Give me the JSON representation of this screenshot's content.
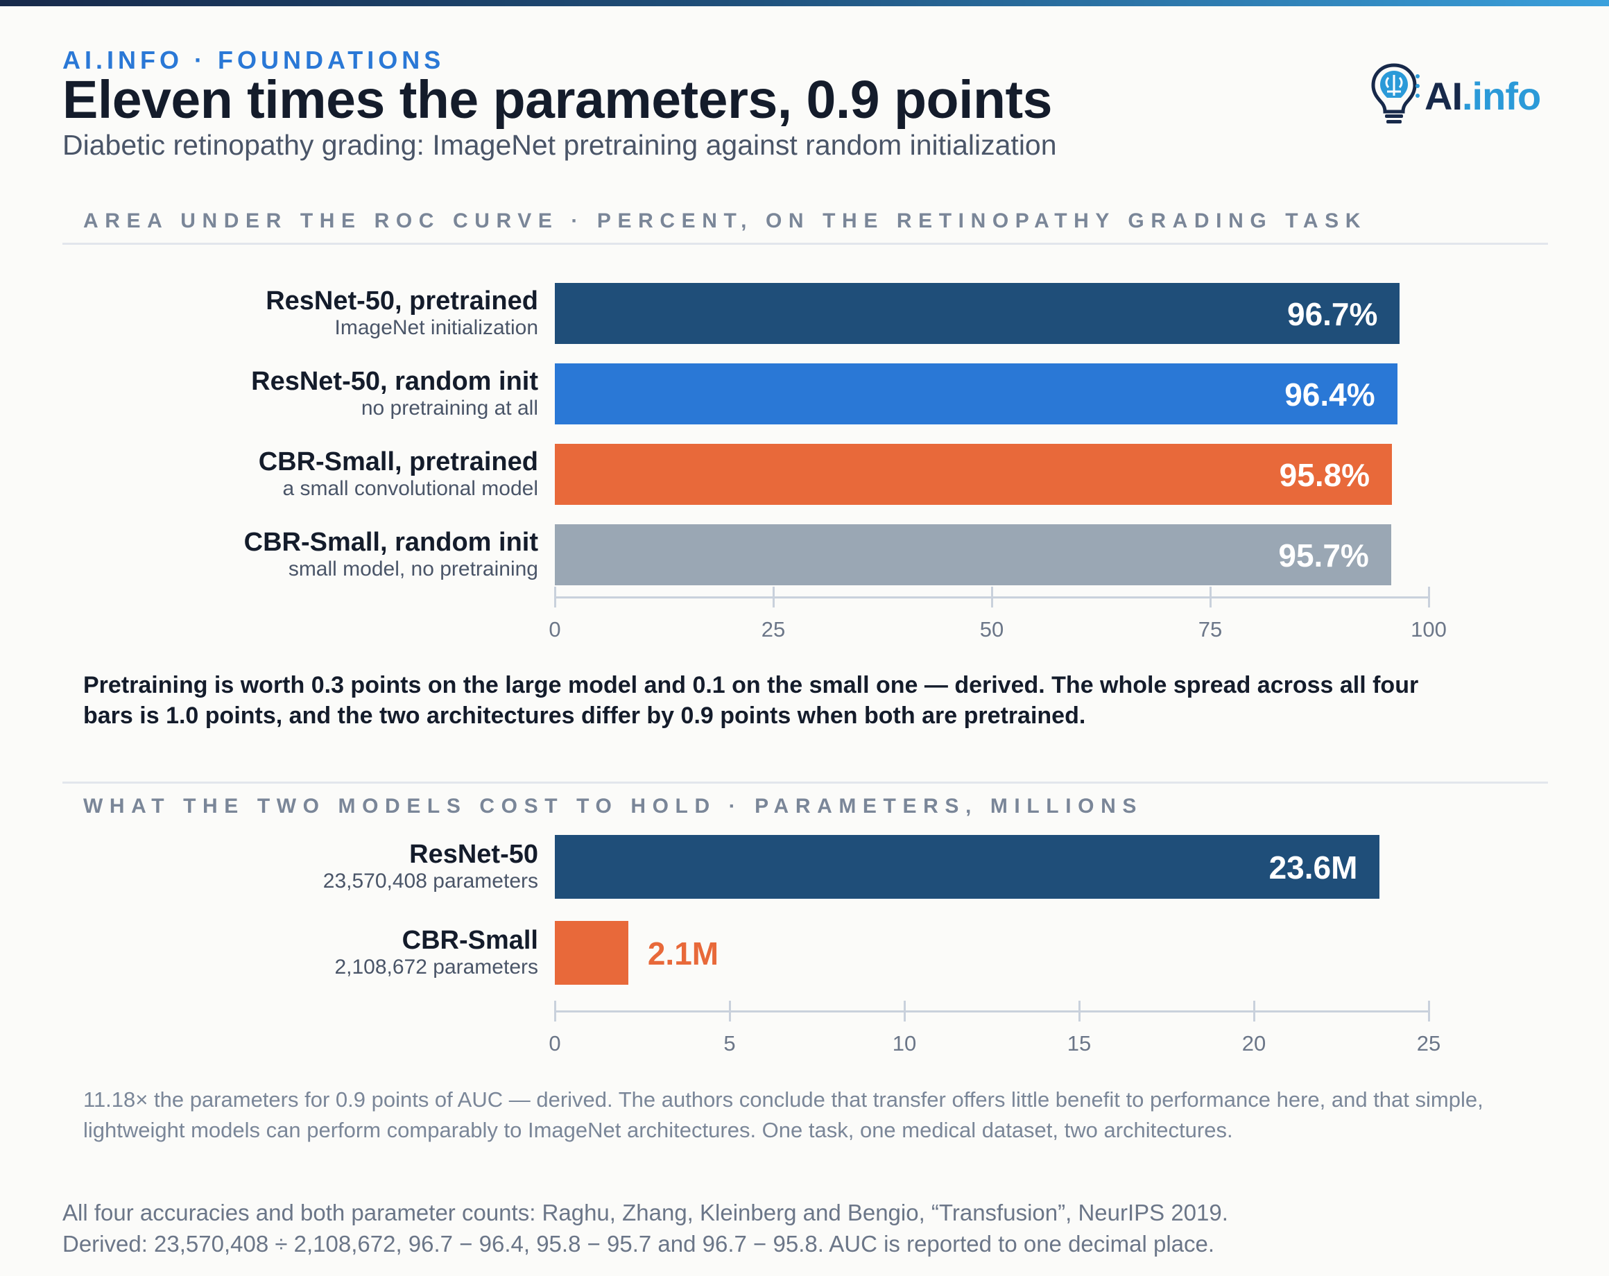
{
  "header": {
    "kicker": "AI.INFO · FOUNDATIONS",
    "title": "Eleven times the parameters, 0.9 points",
    "subtitle": "Diabetic retinopathy grading: ImageNet pretraining against random initialization"
  },
  "logo": {
    "text_ai": "AI",
    "text_info": ".info",
    "icon": "lightbulb-brain-icon"
  },
  "colors": {
    "navy": "#1f4e79",
    "blue": "#2a78d6",
    "orange": "#e8693a",
    "gray": "#9aa7b4"
  },
  "chart_data": [
    {
      "type": "bar",
      "orientation": "horizontal",
      "title": "AREA UNDER THE ROC CURVE · PERCENT, ON THE RETINOPATHY GRADING TASK",
      "categories": [
        "ResNet-50, pretrained",
        "ResNet-50, random init",
        "CBR-Small, pretrained",
        "CBR-Small, random init"
      ],
      "sublabels": [
        "ImageNet initialization",
        "no pretraining at all",
        "a small convolutional model",
        "small model, no pretraining"
      ],
      "values": [
        96.7,
        96.4,
        95.8,
        95.7
      ],
      "value_labels": [
        "96.7%",
        "96.4%",
        "95.8%",
        "95.7%"
      ],
      "bar_colors": [
        "#1f4e79",
        "#2a78d6",
        "#e8693a",
        "#9aa7b4"
      ],
      "xlim": [
        0,
        100
      ],
      "xticks": [
        "0",
        "25",
        "50",
        "75",
        "100"
      ]
    },
    {
      "type": "bar",
      "orientation": "horizontal",
      "title": "WHAT THE TWO MODELS COST TO HOLD · PARAMETERS, MILLIONS",
      "categories": [
        "ResNet-50",
        "CBR-Small"
      ],
      "sublabels": [
        "23,570,408 parameters",
        "2,108,672 parameters"
      ],
      "values": [
        23.6,
        2.1
      ],
      "value_labels": [
        "23.6M",
        "2.1M"
      ],
      "bar_colors": [
        "#1f4e79",
        "#e8693a"
      ],
      "xlim": [
        0,
        25
      ],
      "xticks": [
        "0",
        "5",
        "10",
        "15",
        "20",
        "25"
      ]
    }
  ],
  "takeaway": "Pretraining is worth 0.3 points on the large model and 0.1 on the small one — derived. The whole spread across all four bars is 1.0 points, and the two architectures differ by 0.9 points when both are pretrained.",
  "note": "11.18× the parameters for 0.9 points of AUC — derived. The authors conclude that transfer offers little benefit to performance here, and that simple, lightweight models can perform comparably to ImageNet architectures. One task, one medical dataset, two architectures.",
  "source": {
    "line1": "All four accuracies and both parameter counts: Raghu, Zhang, Kleinberg and Bengio, “Transfusion”, NeurIPS 2019.",
    "line2": "Derived: 23,570,408 ÷ 2,108,672, 96.7 − 96.4, 95.8 − 95.7 and 96.7 − 95.8. AUC is reported to one decimal place."
  }
}
